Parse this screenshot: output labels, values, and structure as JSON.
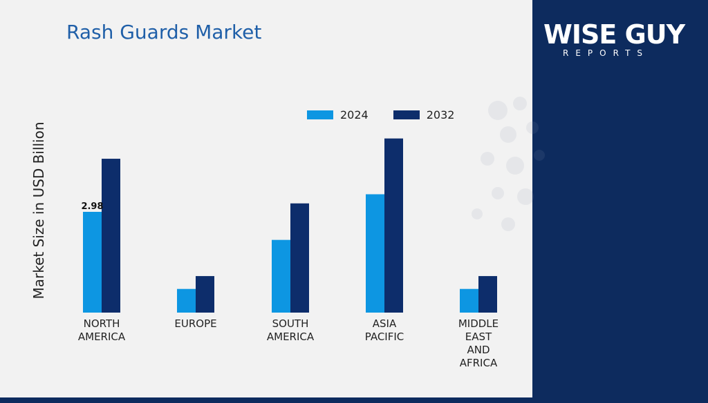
{
  "header": {
    "title": "Rash Guards Market"
  },
  "brand": {
    "logo_main": "WISE GUY",
    "logo_sub": "REPORTS"
  },
  "colors": {
    "series_2024": "#0d96e2",
    "series_2032": "#0d2d6b",
    "title": "#1f5fa8",
    "right_panel": "#0d2b5e"
  },
  "chart_data": {
    "type": "bar",
    "title": "Rash Guards Market",
    "ylabel": "Market Size in USD Billion",
    "xlabel": "",
    "categories": [
      [
        "NORTH",
        "AMERICA"
      ],
      [
        "EUROPE"
      ],
      [
        "SOUTH",
        "AMERICA"
      ],
      [
        "ASIA",
        "PACIFIC"
      ],
      [
        "MIDDLE",
        "EAST",
        "AND",
        "AFRICA"
      ]
    ],
    "series": [
      {
        "name": "2024",
        "values": [
          2.98,
          0.7,
          2.15,
          3.5,
          0.7
        ]
      },
      {
        "name": "2032",
        "values": [
          4.55,
          1.08,
          3.23,
          5.15,
          1.08
        ]
      }
    ],
    "data_labels": [
      {
        "series": 0,
        "index": 0,
        "text": "2.98"
      }
    ],
    "ylim": [
      0,
      5.5
    ],
    "legend_position": "top",
    "grid": false
  }
}
